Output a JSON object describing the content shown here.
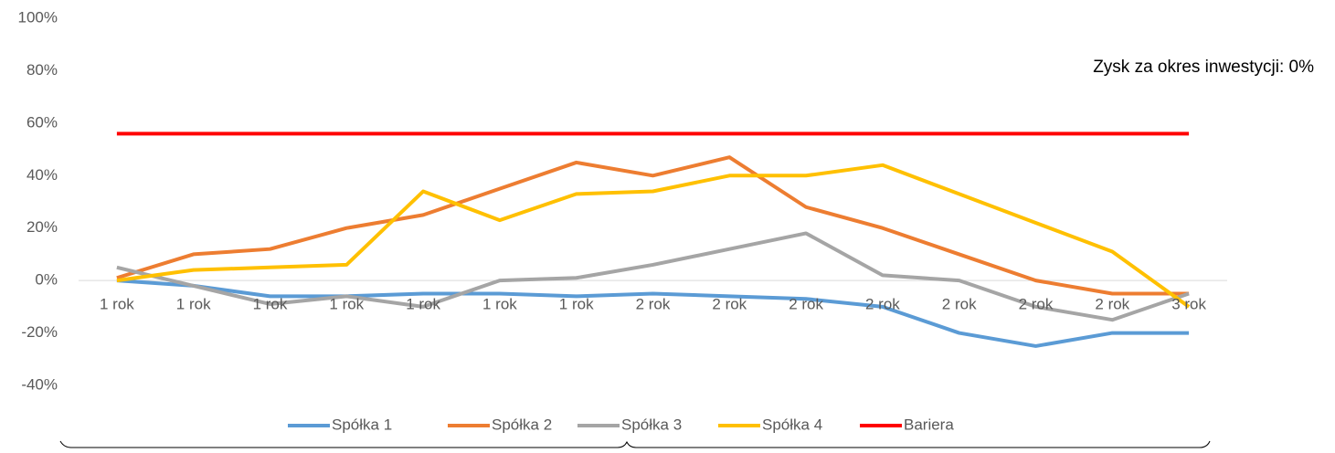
{
  "chart_data": {
    "type": "line",
    "annotation": "Zysk za okres inwestycji: 0%",
    "categories": [
      "1 rok",
      "1 rok",
      "1 rok",
      "1 rok",
      "1 rok",
      "1 rok",
      "1 rok",
      "2 rok",
      "2 rok",
      "2 rok",
      "2 rok",
      "2 rok",
      "2 rok",
      "2 rok",
      "3 rok"
    ],
    "series": [
      {
        "name": "Spółka 1",
        "color": "#5b9bd5",
        "values": [
          0,
          -2,
          -6,
          -6,
          -5,
          -5,
          -6,
          -5,
          -6,
          -7,
          -10,
          -20,
          -25,
          -20,
          -20
        ]
      },
      {
        "name": "Spółka 2",
        "color": "#ed7d31",
        "values": [
          1,
          10,
          12,
          20,
          25,
          35,
          45,
          40,
          47,
          28,
          20,
          10,
          0,
          -5,
          -5
        ]
      },
      {
        "name": "Spółka 3",
        "color": "#a5a5a5",
        "values": [
          5,
          -2,
          -9,
          -6,
          -10,
          0,
          1,
          6,
          12,
          18,
          2,
          0,
          -10,
          -15,
          -5
        ]
      },
      {
        "name": "Spółka 4",
        "color": "#ffc000",
        "values": [
          0,
          4,
          5,
          6,
          34,
          23,
          33,
          34,
          40,
          40,
          44,
          33,
          22,
          11,
          -10
        ]
      },
      {
        "name": "Bariera",
        "color": "#ff0000",
        "values": [
          56,
          56,
          56,
          56,
          56,
          56,
          56,
          56,
          56,
          56,
          56,
          56,
          56,
          56,
          56
        ]
      }
    ],
    "ylim": [
      -40,
      100
    ],
    "yticks": [
      {
        "value": -40,
        "label": "-40%"
      },
      {
        "value": -20,
        "label": "-20%"
      },
      {
        "value": 0,
        "label": "0%"
      },
      {
        "value": 20,
        "label": "20%"
      },
      {
        "value": 40,
        "label": "40%"
      },
      {
        "value": 60,
        "label": "60%"
      },
      {
        "value": 80,
        "label": "80%"
      },
      {
        "value": 100,
        "label": "100%"
      }
    ],
    "grid": false
  }
}
